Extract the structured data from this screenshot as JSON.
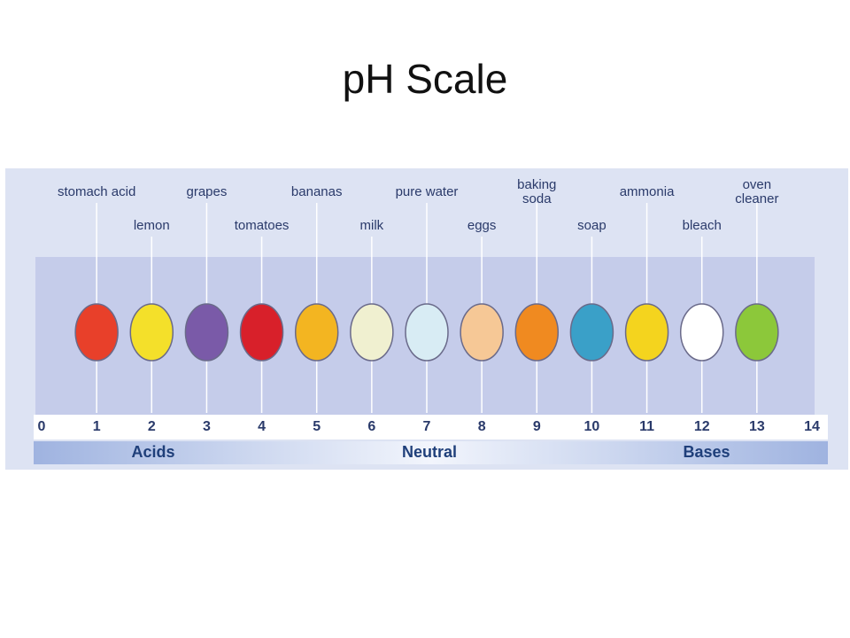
{
  "title": "pH Scale",
  "scale": {
    "ticks": [
      0,
      1,
      2,
      3,
      4,
      5,
      6,
      7,
      8,
      9,
      10,
      11,
      12,
      13,
      14
    ],
    "regions": [
      "Acids",
      "Neutral",
      "Bases"
    ]
  },
  "items": [
    {
      "label": [
        "stomach acid"
      ],
      "ph": 1
    },
    {
      "label": [
        "lemon"
      ],
      "ph": 2
    },
    {
      "label": [
        "grapes"
      ],
      "ph": 3
    },
    {
      "label": [
        "tomatoes"
      ],
      "ph": 4
    },
    {
      "label": [
        "bananas"
      ],
      "ph": 5
    },
    {
      "label": [
        "milk"
      ],
      "ph": 6
    },
    {
      "label": [
        "pure water"
      ],
      "ph": 7
    },
    {
      "label": [
        "eggs"
      ],
      "ph": 8
    },
    {
      "label": [
        "baking",
        "soda"
      ],
      "ph": 9
    },
    {
      "label": [
        "soap"
      ],
      "ph": 10
    },
    {
      "label": [
        "ammonia"
      ],
      "ph": 11
    },
    {
      "label": [
        "bleach"
      ],
      "ph": 12
    },
    {
      "label": [
        "oven",
        "cleaner"
      ],
      "ph": 13
    }
  ]
}
